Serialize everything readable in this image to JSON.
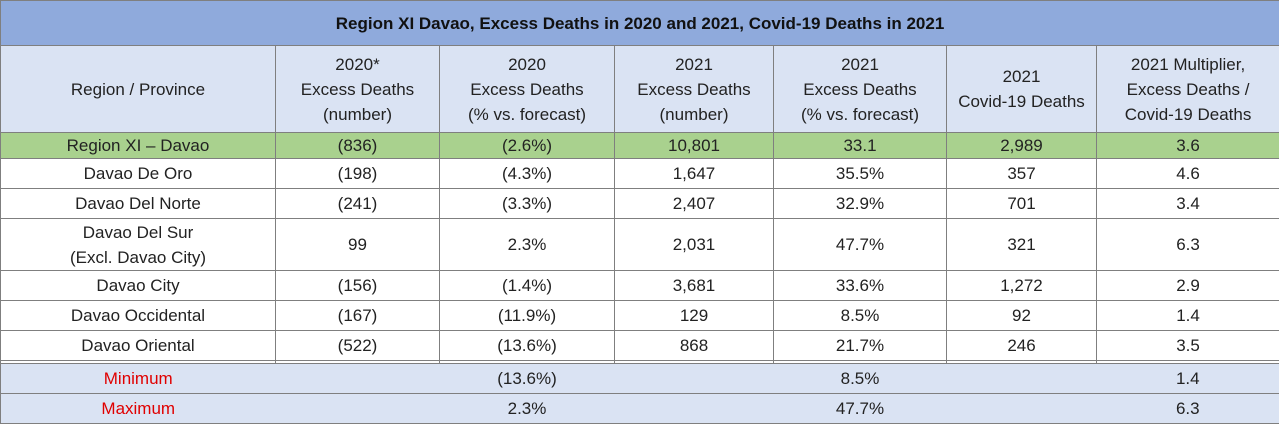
{
  "title": "Region XI Davao, Excess Deaths in 2020 and 2021, Covid-19 Deaths in 2021",
  "headers": [
    "Region / Province",
    "2020*\nExcess Deaths\n(number)",
    "2020\nExcess Deaths\n(% vs. forecast)",
    "2021\nExcess Deaths\n(number)",
    "2021\nExcess Deaths\n(% vs. forecast)",
    "2021\nCovid-19 Deaths",
    "2021 Multiplier,\nExcess Deaths /\nCovid-19 Deaths"
  ],
  "region_row": [
    "Region XI – Davao",
    "(836)",
    "(2.6%)",
    "10,801",
    "33.1",
    "2,989",
    "3.6"
  ],
  "province_rows": [
    [
      "Davao De Oro",
      "(198)",
      "(4.3%)",
      "1,647",
      "35.5%",
      "357",
      "4.6"
    ],
    [
      "Davao Del Norte",
      "(241)",
      "(3.3%)",
      "2,407",
      "32.9%",
      "701",
      "3.4"
    ],
    [
      "Davao Del Sur\n(Excl. Davao City)",
      "99",
      "2.3%",
      "2,031",
      "47.7%",
      "321",
      "6.3"
    ],
    [
      "Davao City",
      "(156)",
      "(1.4%)",
      "3,681",
      "33.6%",
      "1,272",
      "2.9"
    ],
    [
      "Davao Occidental",
      "(167)",
      "(11.9%)",
      "129",
      "8.5%",
      "92",
      "1.4"
    ],
    [
      "Davao Oriental",
      "(522)",
      "(13.6%)",
      "868",
      "21.7%",
      "246",
      "3.5"
    ]
  ],
  "summary_rows": [
    {
      "label": "Minimum",
      "pct_2020": "(13.6%)",
      "pct_2021": "8.5%",
      "multiplier": "1.4"
    },
    {
      "label": "Maximum",
      "pct_2020": "2.3%",
      "pct_2021": "47.7%",
      "multiplier": "6.3"
    }
  ]
}
